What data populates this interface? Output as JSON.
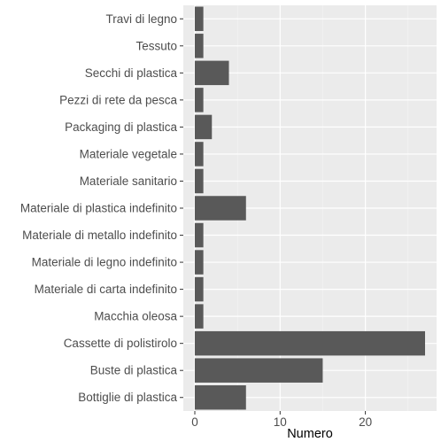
{
  "chart_data": {
    "type": "bar",
    "orientation": "horizontal",
    "categories": [
      "Travi di legno",
      "Tessuto",
      "Secchi di plastica",
      "Pezzi di rete da pesca",
      "Packaging di plastica",
      "Materiale vegetale",
      "Materiale sanitario",
      "Materiale di plastica indefinito",
      "Materiale di metallo indefinito",
      "Materiale di legno indefinito",
      "Materiale di carta indefinito",
      "Macchia oleosa",
      "Cassette di polistirolo",
      "Buste di plastica",
      "Bottiglie di plastica"
    ],
    "values": [
      1,
      1,
      4,
      1,
      2,
      1,
      1,
      6,
      1,
      1,
      1,
      1,
      27,
      15,
      6
    ],
    "xlabel": "Numero",
    "ylabel": "",
    "title": "",
    "xlim": [
      -1.35,
      28.35
    ],
    "x_ticks": [
      0,
      10,
      20
    ],
    "x_minor_ticks": [
      5,
      15,
      25
    ],
    "grid": true,
    "colors": {
      "bar": "#595959",
      "panel_background": "#ebebeb",
      "grid_major": "#ffffff",
      "grid_minor": "#f5f5f5",
      "tick_text": "#4d4d4d",
      "axis_title": "#000000"
    }
  }
}
